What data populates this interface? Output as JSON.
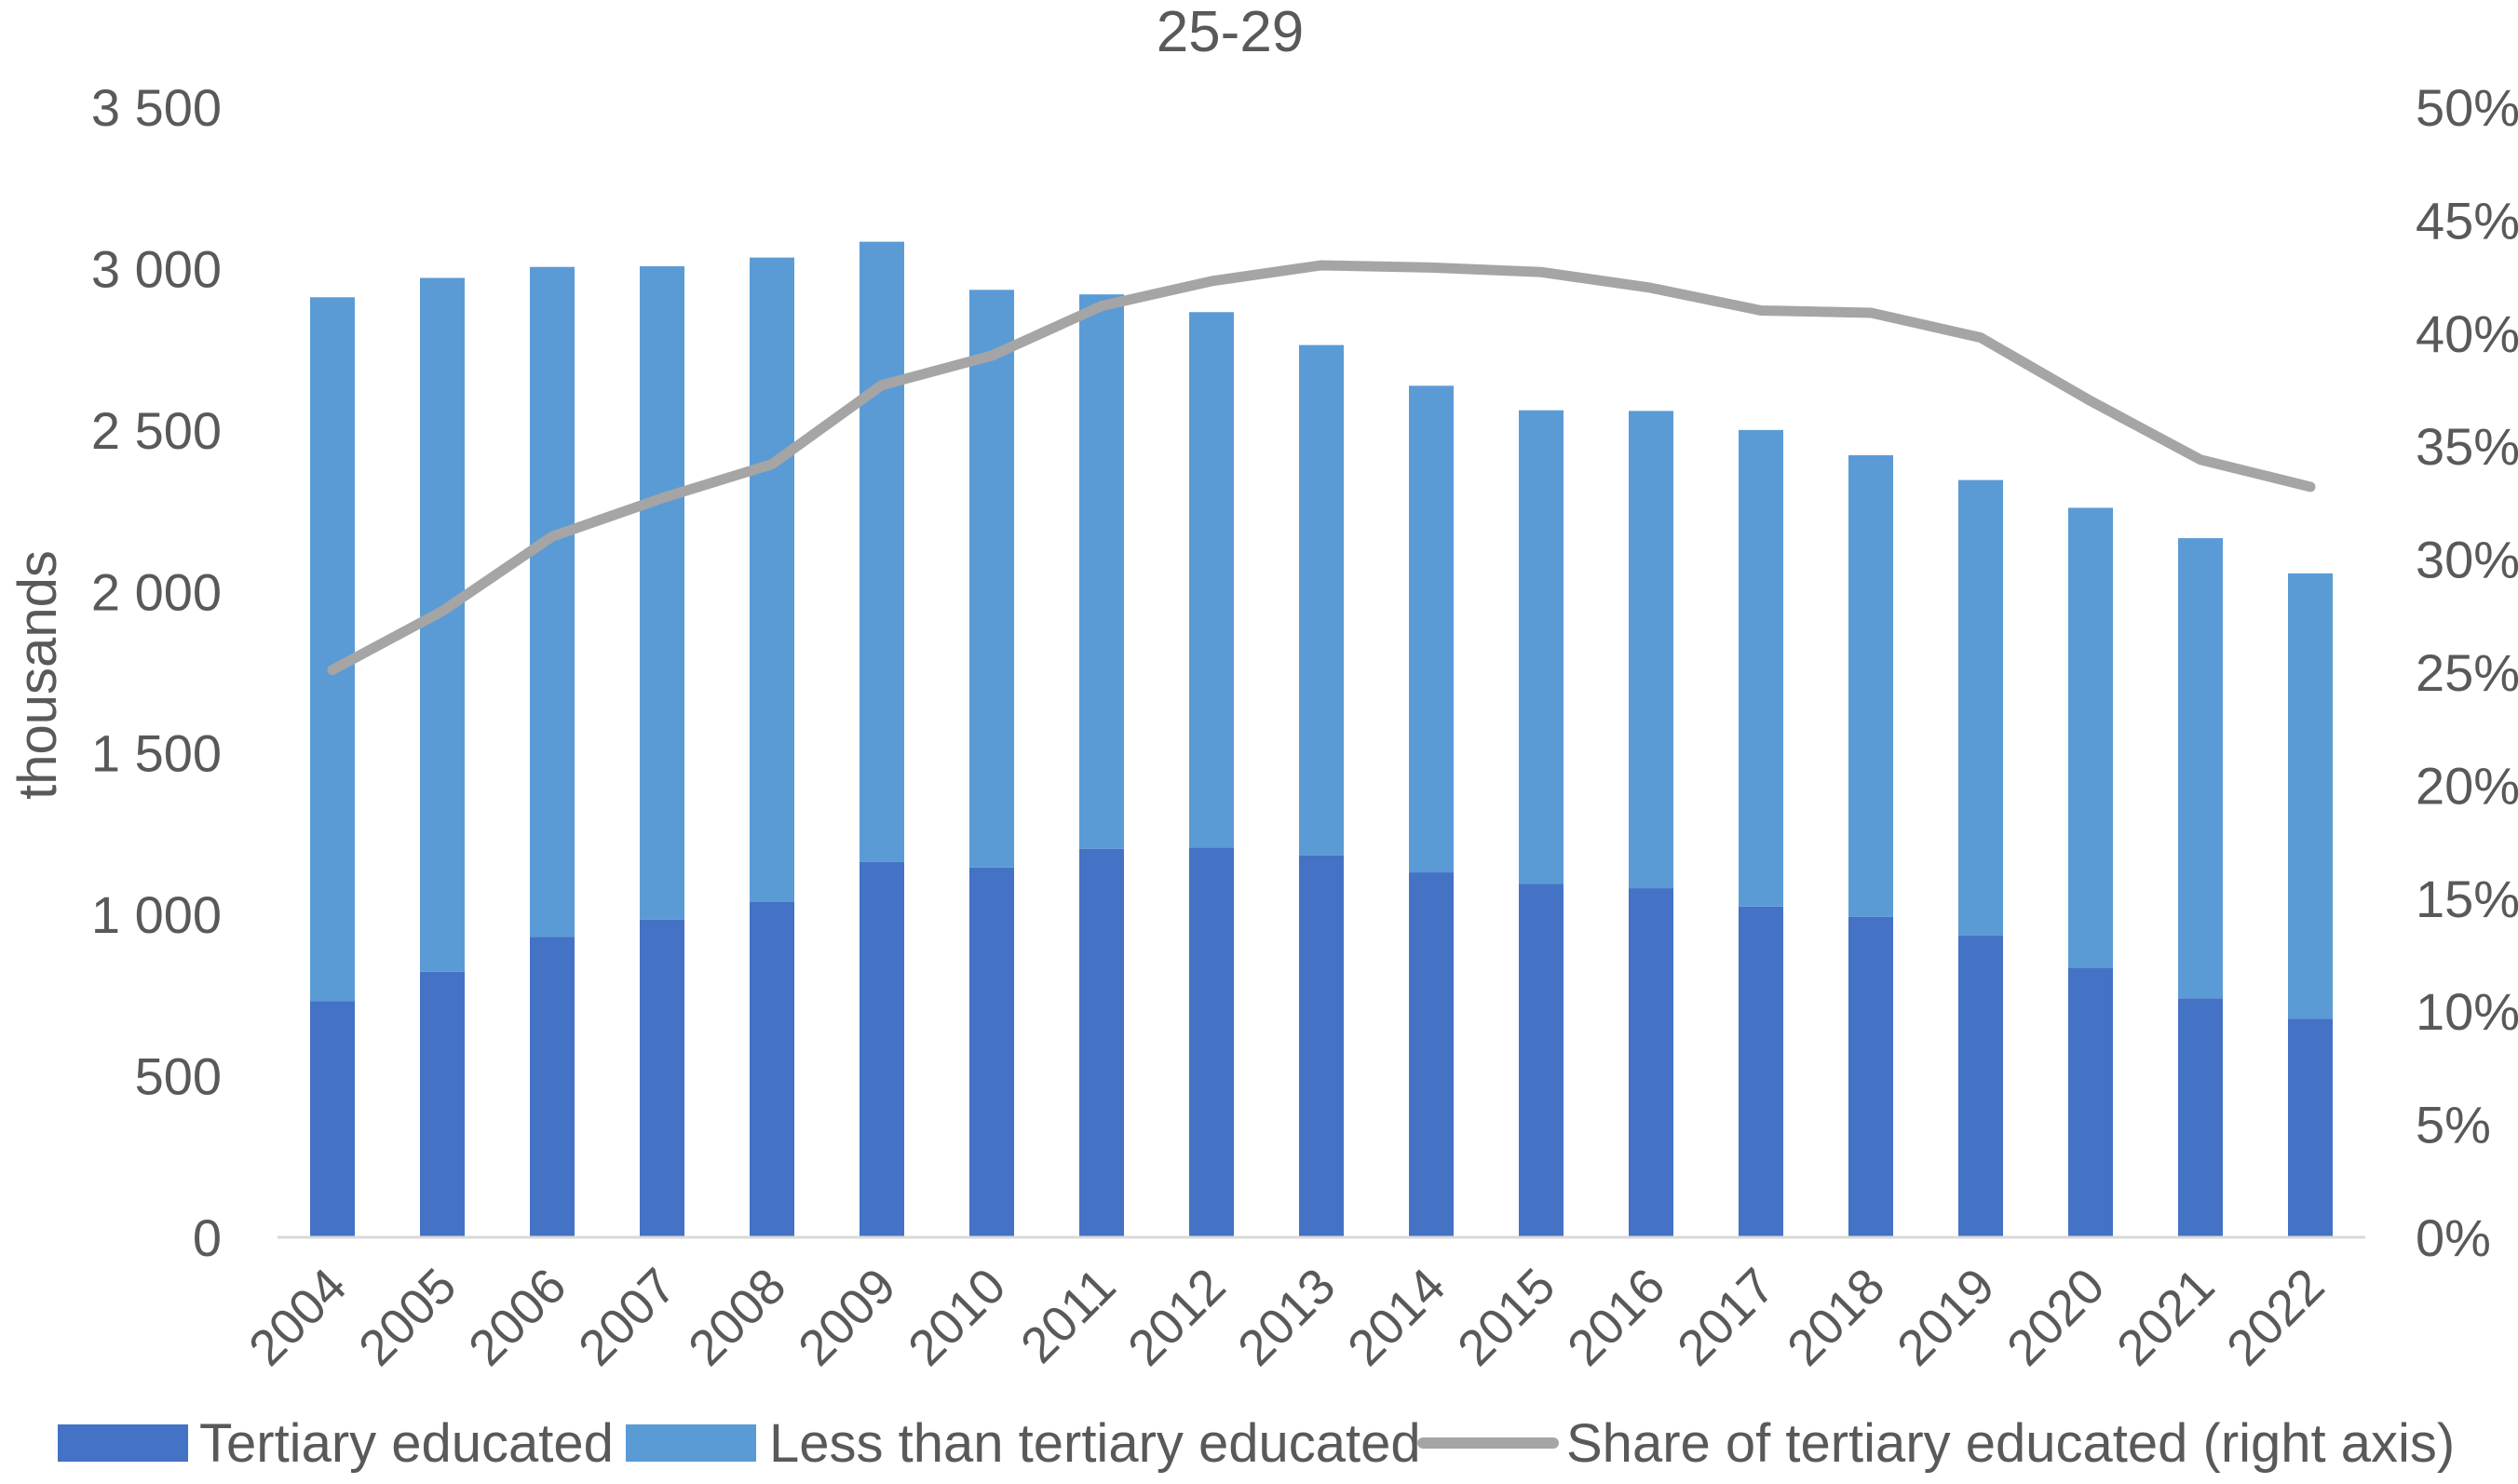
{
  "chart_data": {
    "type": "bar",
    "title": "25-29",
    "ylabel": "thousands",
    "y2label": "",
    "categories": [
      "2004",
      "2005",
      "2006",
      "2007",
      "2008",
      "2009",
      "2010",
      "2011",
      "2012",
      "2013",
      "2014",
      "2015",
      "2016",
      "2017",
      "2018",
      "2019",
      "2020",
      "2021",
      "2022"
    ],
    "series": [
      {
        "name": "Tertiary educated",
        "kind": "bar",
        "stack": "total",
        "axis": "left",
        "color": "#4472C4",
        "values": [
          731,
          822,
          930,
          984,
          1039,
          1162,
          1145,
          1203,
          1207,
          1183,
          1130,
          1094,
          1081,
          1024,
          992,
          934,
          835,
          740,
          676
        ]
      },
      {
        "name": "Less than tertiary educated",
        "kind": "bar",
        "stack": "total",
        "axis": "left",
        "color": "#5B9BD5",
        "values": [
          2180,
          2149,
          2075,
          2023,
          1995,
          1921,
          1789,
          1717,
          1658,
          1580,
          1507,
          1467,
          1478,
          1476,
          1430,
          1411,
          1424,
          1425,
          1380
        ]
      },
      {
        "name": "Share of tertiary educated (right axis)",
        "kind": "line",
        "axis": "right",
        "color": "#A5A5A5",
        "values": [
          0.251,
          0.277,
          0.31,
          0.327,
          0.342,
          0.377,
          0.39,
          0.412,
          0.423,
          0.43,
          0.429,
          0.427,
          0.42,
          0.41,
          0.409,
          0.398,
          0.37,
          0.344,
          0.332
        ]
      }
    ],
    "yticks": [
      "0",
      "500",
      "1 000",
      "1 500",
      "2 000",
      "2 500",
      "3 000",
      "3 500"
    ],
    "y2ticks": [
      "0%",
      "5%",
      "10%",
      "15%",
      "20%",
      "25%",
      "30%",
      "35%",
      "40%",
      "45%",
      "50%"
    ],
    "ylim": [
      0,
      3500
    ],
    "y2lim": [
      0,
      0.5
    ],
    "grid": false,
    "legend_position": "bottom"
  }
}
